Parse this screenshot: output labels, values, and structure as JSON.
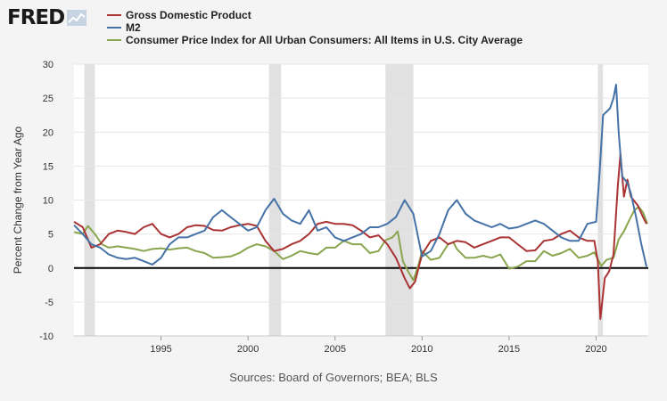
{
  "logo": {
    "text": "FRED"
  },
  "source_text": "Sources: Board of Governors; BEA; BLS",
  "colors": {
    "background": "#f4f4f4",
    "plot_bg": "#ffffff",
    "recession": "#e1e1e1",
    "gdp": "#aa3333",
    "m2": "#4572a7",
    "cpi": "#89a54e",
    "zero_line": "#000000"
  },
  "chart_data": {
    "type": "line",
    "title": "",
    "xlabel": "",
    "ylabel": "Percent Change from Year Ago",
    "xlim": [
      1990.0,
      2023.0
    ],
    "ylim": [
      -10,
      30
    ],
    "yticks": [
      -10,
      -5,
      0,
      5,
      10,
      15,
      20,
      25,
      30
    ],
    "xticks": [
      1995,
      2000,
      2005,
      2010,
      2015,
      2020
    ],
    "grid": "horizontal",
    "legend_position": "top-left",
    "recessions": [
      [
        1990.6,
        1991.2
      ],
      [
        2001.2,
        2001.9
      ],
      [
        2007.9,
        2009.5
      ],
      [
        2020.1,
        2020.4
      ]
    ],
    "series": [
      {
        "name": "Gross Domestic Product",
        "color": "#aa3333",
        "points": [
          [
            1990.0,
            6.8
          ],
          [
            1990.5,
            6.0
          ],
          [
            1991.0,
            3.0
          ],
          [
            1991.5,
            3.5
          ],
          [
            1992.0,
            5.0
          ],
          [
            1992.5,
            5.5
          ],
          [
            1993.0,
            5.3
          ],
          [
            1993.5,
            5.0
          ],
          [
            1994.0,
            6.0
          ],
          [
            1994.5,
            6.5
          ],
          [
            1995.0,
            5.0
          ],
          [
            1995.5,
            4.5
          ],
          [
            1996.0,
            5.0
          ],
          [
            1996.5,
            6.0
          ],
          [
            1997.0,
            6.3
          ],
          [
            1997.5,
            6.2
          ],
          [
            1998.0,
            5.6
          ],
          [
            1998.5,
            5.5
          ],
          [
            1999.0,
            6.0
          ],
          [
            1999.5,
            6.3
          ],
          [
            2000.0,
            6.5
          ],
          [
            2000.5,
            6.2
          ],
          [
            2001.0,
            4.0
          ],
          [
            2001.5,
            2.5
          ],
          [
            2002.0,
            2.8
          ],
          [
            2002.5,
            3.5
          ],
          [
            2003.0,
            4.0
          ],
          [
            2003.5,
            5.0
          ],
          [
            2004.0,
            6.5
          ],
          [
            2004.5,
            6.8
          ],
          [
            2005.0,
            6.5
          ],
          [
            2005.5,
            6.5
          ],
          [
            2006.0,
            6.3
          ],
          [
            2006.5,
            5.5
          ],
          [
            2007.0,
            4.5
          ],
          [
            2007.5,
            4.8
          ],
          [
            2008.0,
            3.5
          ],
          [
            2008.5,
            1.5
          ],
          [
            2009.0,
            -1.5
          ],
          [
            2009.3,
            -3.0
          ],
          [
            2009.6,
            -2.0
          ],
          [
            2010.0,
            2.0
          ],
          [
            2010.5,
            4.0
          ],
          [
            2011.0,
            4.5
          ],
          [
            2011.5,
            3.5
          ],
          [
            2012.0,
            4.0
          ],
          [
            2012.5,
            3.8
          ],
          [
            2013.0,
            3.0
          ],
          [
            2013.5,
            3.5
          ],
          [
            2014.0,
            4.0
          ],
          [
            2014.5,
            4.5
          ],
          [
            2015.0,
            4.5
          ],
          [
            2015.5,
            3.5
          ],
          [
            2016.0,
            2.5
          ],
          [
            2016.5,
            2.6
          ],
          [
            2017.0,
            4.0
          ],
          [
            2017.5,
            4.2
          ],
          [
            2018.0,
            5.0
          ],
          [
            2018.5,
            5.5
          ],
          [
            2019.0,
            4.5
          ],
          [
            2019.5,
            4.0
          ],
          [
            2019.9,
            4.0
          ],
          [
            2020.1,
            1.0
          ],
          [
            2020.25,
            -7.5
          ],
          [
            2020.5,
            -1.5
          ],
          [
            2020.75,
            -0.5
          ],
          [
            2021.0,
            2.0
          ],
          [
            2021.25,
            12.0
          ],
          [
            2021.4,
            16.8
          ],
          [
            2021.6,
            10.5
          ],
          [
            2021.8,
            13.0
          ],
          [
            2022.0,
            10.5
          ],
          [
            2022.4,
            9.2
          ],
          [
            2022.7,
            7.5
          ],
          [
            2022.9,
            6.5
          ]
        ]
      },
      {
        "name": "M2",
        "color": "#4572a7",
        "points": [
          [
            1990.0,
            6.3
          ],
          [
            1990.5,
            5.0
          ],
          [
            1991.0,
            3.5
          ],
          [
            1991.5,
            3.0
          ],
          [
            1992.0,
            2.0
          ],
          [
            1992.5,
            1.5
          ],
          [
            1993.0,
            1.3
          ],
          [
            1993.5,
            1.5
          ],
          [
            1994.0,
            1.0
          ],
          [
            1994.5,
            0.5
          ],
          [
            1995.0,
            1.5
          ],
          [
            1995.5,
            3.5
          ],
          [
            1996.0,
            4.5
          ],
          [
            1996.5,
            4.5
          ],
          [
            1997.0,
            5.0
          ],
          [
            1997.5,
            5.5
          ],
          [
            1998.0,
            7.5
          ],
          [
            1998.5,
            8.5
          ],
          [
            1999.0,
            7.5
          ],
          [
            1999.5,
            6.5
          ],
          [
            2000.0,
            5.5
          ],
          [
            2000.5,
            6.0
          ],
          [
            2001.0,
            8.5
          ],
          [
            2001.5,
            10.2
          ],
          [
            2002.0,
            8.0
          ],
          [
            2002.5,
            7.0
          ],
          [
            2003.0,
            6.5
          ],
          [
            2003.5,
            8.5
          ],
          [
            2004.0,
            5.5
          ],
          [
            2004.5,
            6.0
          ],
          [
            2005.0,
            4.5
          ],
          [
            2005.5,
            4.0
          ],
          [
            2006.0,
            4.5
          ],
          [
            2006.5,
            5.0
          ],
          [
            2007.0,
            6.0
          ],
          [
            2007.5,
            6.0
          ],
          [
            2008.0,
            6.5
          ],
          [
            2008.5,
            7.5
          ],
          [
            2009.0,
            10.0
          ],
          [
            2009.5,
            8.0
          ],
          [
            2010.0,
            1.7
          ],
          [
            2010.5,
            2.5
          ],
          [
            2011.0,
            5.0
          ],
          [
            2011.5,
            8.5
          ],
          [
            2012.0,
            10.0
          ],
          [
            2012.5,
            8.0
          ],
          [
            2013.0,
            7.0
          ],
          [
            2013.5,
            6.5
          ],
          [
            2014.0,
            6.0
          ],
          [
            2014.5,
            6.5
          ],
          [
            2015.0,
            5.8
          ],
          [
            2015.5,
            6.0
          ],
          [
            2016.0,
            6.5
          ],
          [
            2016.5,
            7.0
          ],
          [
            2017.0,
            6.5
          ],
          [
            2017.5,
            5.5
          ],
          [
            2018.0,
            4.5
          ],
          [
            2018.5,
            4.0
          ],
          [
            2019.0,
            4.0
          ],
          [
            2019.5,
            6.5
          ],
          [
            2020.0,
            6.8
          ],
          [
            2020.2,
            14.0
          ],
          [
            2020.4,
            22.5
          ],
          [
            2020.8,
            23.5
          ],
          [
            2021.0,
            25.0
          ],
          [
            2021.15,
            27.0
          ],
          [
            2021.3,
            20.0
          ],
          [
            2021.5,
            13.5
          ],
          [
            2021.8,
            12.5
          ],
          [
            2022.0,
            11.0
          ],
          [
            2022.3,
            7.5
          ],
          [
            2022.6,
            3.5
          ],
          [
            2022.9,
            0.2
          ]
        ]
      },
      {
        "name": "Consumer Price Index for All Urban Consumers: All Items in U.S. City Average",
        "color": "#89a54e",
        "points": [
          [
            1990.0,
            5.3
          ],
          [
            1990.5,
            5.0
          ],
          [
            1990.8,
            6.2
          ],
          [
            1991.2,
            5.0
          ],
          [
            1991.6,
            3.5
          ],
          [
            1992.0,
            3.0
          ],
          [
            1992.5,
            3.2
          ],
          [
            1993.0,
            3.0
          ],
          [
            1993.5,
            2.8
          ],
          [
            1994.0,
            2.5
          ],
          [
            1994.5,
            2.8
          ],
          [
            1995.0,
            2.9
          ],
          [
            1995.5,
            2.7
          ],
          [
            1996.0,
            2.9
          ],
          [
            1996.5,
            3.0
          ],
          [
            1997.0,
            2.5
          ],
          [
            1997.5,
            2.2
          ],
          [
            1998.0,
            1.5
          ],
          [
            1998.5,
            1.6
          ],
          [
            1999.0,
            1.7
          ],
          [
            1999.5,
            2.2
          ],
          [
            2000.0,
            3.0
          ],
          [
            2000.5,
            3.5
          ],
          [
            2001.0,
            3.2
          ],
          [
            2001.5,
            2.5
          ],
          [
            2002.0,
            1.3
          ],
          [
            2002.5,
            1.8
          ],
          [
            2003.0,
            2.5
          ],
          [
            2003.5,
            2.2
          ],
          [
            2004.0,
            2.0
          ],
          [
            2004.5,
            3.0
          ],
          [
            2005.0,
            3.0
          ],
          [
            2005.5,
            4.0
          ],
          [
            2006.0,
            3.5
          ],
          [
            2006.5,
            3.5
          ],
          [
            2007.0,
            2.2
          ],
          [
            2007.5,
            2.5
          ],
          [
            2007.9,
            4.1
          ],
          [
            2008.3,
            4.5
          ],
          [
            2008.6,
            5.4
          ],
          [
            2008.9,
            1.0
          ],
          [
            2009.2,
            -0.5
          ],
          [
            2009.5,
            -1.8
          ],
          [
            2009.8,
            0.5
          ],
          [
            2010.0,
            2.5
          ],
          [
            2010.5,
            1.2
          ],
          [
            2011.0,
            1.5
          ],
          [
            2011.5,
            3.5
          ],
          [
            2011.8,
            3.8
          ],
          [
            2012.0,
            2.8
          ],
          [
            2012.5,
            1.5
          ],
          [
            2013.0,
            1.5
          ],
          [
            2013.5,
            1.8
          ],
          [
            2014.0,
            1.5
          ],
          [
            2014.5,
            2.0
          ],
          [
            2015.0,
            -0.1
          ],
          [
            2015.5,
            0.2
          ],
          [
            2016.0,
            1.0
          ],
          [
            2016.5,
            1.0
          ],
          [
            2017.0,
            2.5
          ],
          [
            2017.5,
            1.8
          ],
          [
            2018.0,
            2.2
          ],
          [
            2018.5,
            2.8
          ],
          [
            2019.0,
            1.5
          ],
          [
            2019.5,
            1.8
          ],
          [
            2019.9,
            2.3
          ],
          [
            2020.3,
            0.3
          ],
          [
            2020.6,
            1.2
          ],
          [
            2021.0,
            1.5
          ],
          [
            2021.3,
            4.2
          ],
          [
            2021.6,
            5.4
          ],
          [
            2021.9,
            7.0
          ],
          [
            2022.2,
            8.5
          ],
          [
            2022.45,
            9.0
          ],
          [
            2022.7,
            8.2
          ],
          [
            2022.95,
            6.5
          ]
        ]
      }
    ]
  }
}
